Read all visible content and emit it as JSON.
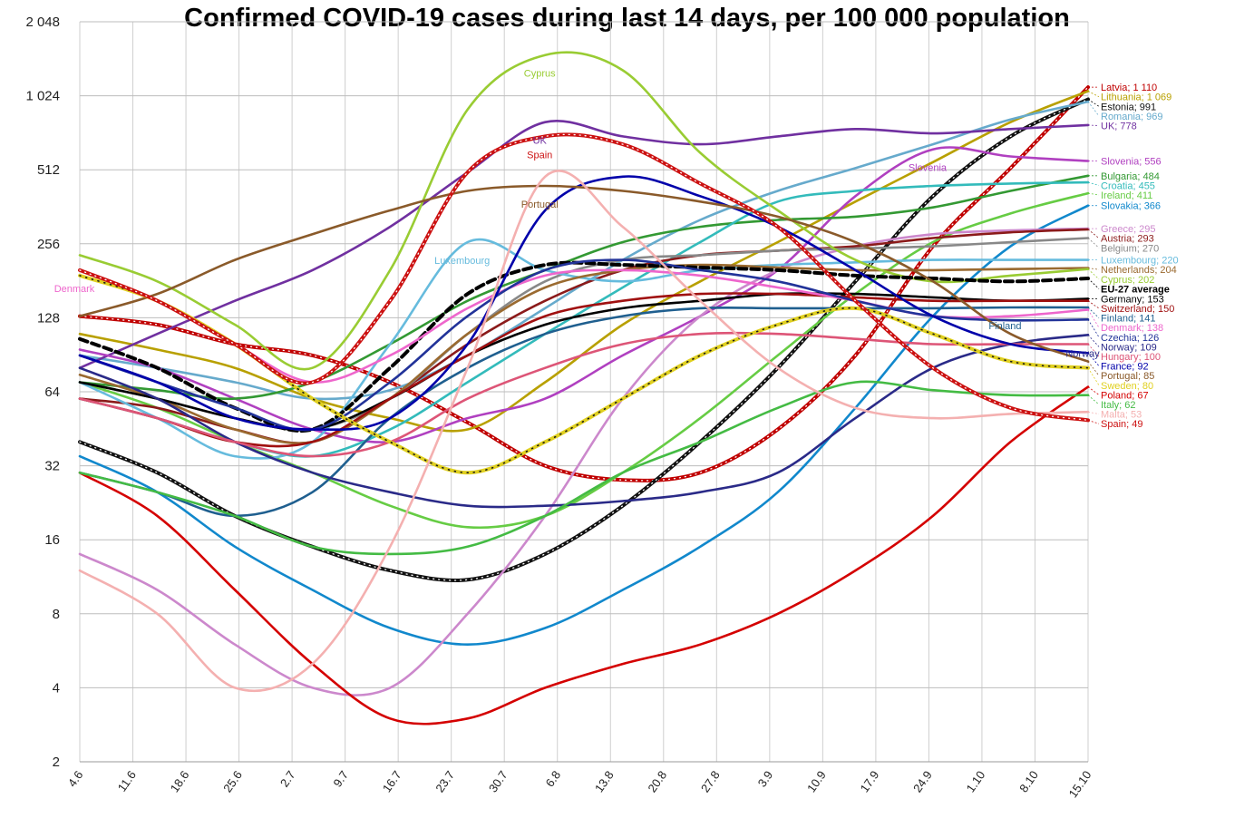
{
  "chart_data": {
    "type": "line",
    "title": "Confirmed COVID-19 cases during last 14 days, per 100 000 population",
    "yscale": "log2",
    "ylim": [
      2,
      2048
    ],
    "yticks": [
      "2",
      "4",
      "8",
      "16",
      "32",
      "64",
      "128",
      "256",
      "512",
      "1 024",
      "2 048"
    ],
    "yticks_values": [
      2,
      4,
      8,
      16,
      32,
      64,
      128,
      256,
      512,
      1024,
      2048
    ],
    "xticks": [
      "4.6",
      "11.6",
      "18.6",
      "25.6",
      "2.7",
      "9.7",
      "16.7",
      "23.7",
      "30.7",
      "6.8",
      "13.8",
      "20.8",
      "27.8",
      "3.9",
      "10.9",
      "17.9",
      "24.9",
      "1.10",
      "8.10",
      "15.10"
    ],
    "grid": true,
    "series": [
      {
        "name": "Latvia",
        "label": "Latvia; 1 110",
        "color": "#c00000",
        "values": [
          130,
          120,
          100,
          90,
          70,
          48,
          32,
          28,
          30,
          45,
          90,
          250,
          520,
          1110
        ]
      },
      {
        "name": "Lithuania",
        "label": "Lithuania; 1 069",
        "color": "#b8a000",
        "values": [
          110,
          95,
          80,
          60,
          50,
          45,
          70,
          120,
          180,
          260,
          380,
          550,
          800,
          1069
        ]
      },
      {
        "name": "Estonia",
        "label": "Estonia; 991",
        "color": "#111111",
        "values": [
          40,
          30,
          20,
          15,
          12,
          11,
          14,
          22,
          40,
          80,
          180,
          400,
          700,
          991
        ]
      },
      {
        "name": "Romania",
        "label": "Romania; 969",
        "color": "#66aacc",
        "values": [
          90,
          80,
          70,
          60,
          65,
          90,
          140,
          220,
          320,
          420,
          520,
          650,
          820,
          969
        ]
      },
      {
        "name": "UK",
        "label": "UK; 778",
        "color": "#7030a0",
        "values": [
          80,
          110,
          150,
          200,
          300,
          500,
          800,
          700,
          650,
          700,
          750,
          720,
          750,
          778
        ]
      },
      {
        "name": "Slovenia",
        "label": "Slovenia; 556",
        "color": "#b040c0",
        "values": [
          95,
          80,
          60,
          45,
          40,
          50,
          60,
          90,
          130,
          200,
          400,
          620,
          580,
          556
        ]
      },
      {
        "name": "Bulgaria",
        "label": "Bulgaria; 484",
        "color": "#339933",
        "values": [
          70,
          65,
          60,
          70,
          100,
          150,
          200,
          260,
          300,
          320,
          330,
          360,
          420,
          484
        ]
      },
      {
        "name": "Croatia",
        "label": "Croatia; 455",
        "color": "#33bbbb",
        "values": [
          60,
          50,
          40,
          35,
          45,
          70,
          110,
          170,
          260,
          380,
          420,
          440,
          450,
          455
        ]
      },
      {
        "name": "Ireland",
        "label": "Ireland; 411",
        "color": "#66cc44",
        "values": [
          70,
          55,
          40,
          30,
          22,
          18,
          20,
          30,
          50,
          90,
          160,
          260,
          340,
          411
        ]
      },
      {
        "name": "Slovakia",
        "label": "Slovakia; 366",
        "color": "#1188cc",
        "values": [
          35,
          25,
          15,
          10,
          7,
          6,
          7,
          10,
          15,
          25,
          55,
          130,
          250,
          366
        ]
      },
      {
        "name": "Greece",
        "label": "Greece; 295",
        "color": "#cc88cc",
        "values": [
          14,
          10,
          6,
          4,
          4,
          8,
          20,
          60,
          130,
          200,
          250,
          280,
          290,
          295
        ]
      },
      {
        "name": "Austria",
        "label": "Austria; 293",
        "color": "#8b1a1a",
        "values": [
          60,
          55,
          45,
          40,
          60,
          100,
          150,
          200,
          230,
          240,
          250,
          270,
          285,
          293
        ]
      },
      {
        "name": "Belgium",
        "label": "Belgium; 270",
        "color": "#888888",
        "values": [
          70,
          60,
          50,
          45,
          60,
          110,
          180,
          220,
          230,
          240,
          245,
          250,
          260,
          270
        ]
      },
      {
        "name": "Luxembourg",
        "label": "Luxembourg; 220",
        "color": "#66bbdd",
        "values": [
          70,
          50,
          35,
          40,
          100,
          260,
          200,
          180,
          200,
          210,
          215,
          220,
          220,
          220
        ]
      },
      {
        "name": "Netherlands",
        "label": "Netherlands; 204",
        "color": "#9a6a30",
        "values": [
          75,
          60,
          45,
          40,
          60,
          110,
          170,
          200,
          210,
          205,
          200,
          200,
          202,
          204
        ]
      },
      {
        "name": "Cyprus",
        "label": "Cyprus; 202",
        "color": "#99cc33",
        "values": [
          230,
          180,
          120,
          80,
          200,
          900,
          1500,
          1300,
          600,
          350,
          220,
          180,
          190,
          202
        ]
      },
      {
        "name": "EU-27 average",
        "label": "EU-27 average",
        "color": "#000000",
        "values": [
          105,
          80,
          55,
          45,
          80,
          160,
          210,
          210,
          205,
          200,
          190,
          185,
          180,
          185
        ]
      },
      {
        "name": "Germany",
        "label": "Germany; 153",
        "color": "#000000",
        "values": [
          70,
          60,
          50,
          45,
          60,
          90,
          120,
          140,
          150,
          160,
          160,
          155,
          150,
          153
        ]
      },
      {
        "name": "Switzerland",
        "label": "Switzerland; 150",
        "color": "#a01010",
        "values": [
          60,
          50,
          40,
          40,
          60,
          90,
          130,
          150,
          160,
          160,
          155,
          150,
          150,
          150
        ]
      },
      {
        "name": "Finland",
        "label": "Finland; 141",
        "color": "#1f5f8f",
        "values": [
          30,
          25,
          20,
          25,
          50,
          80,
          110,
          130,
          140,
          140,
          140,
          140,
          141,
          141
        ]
      },
      {
        "name": "Denmark",
        "label": "Denmark; 138",
        "color": "#ee66cc",
        "values": [
          200,
          150,
          100,
          70,
          90,
          140,
          190,
          200,
          190,
          170,
          150,
          130,
          130,
          138
        ]
      },
      {
        "name": "Czechia",
        "label": "Czechia; 126",
        "color": "#223399",
        "values": [
          90,
          70,
          55,
          45,
          70,
          130,
          200,
          220,
          200,
          180,
          150,
          130,
          125,
          126
        ]
      },
      {
        "name": "Norway",
        "label": "Norway; 109",
        "color": "#2a2a88",
        "values": [
          80,
          60,
          40,
          30,
          25,
          22,
          22,
          23,
          25,
          30,
          50,
          80,
          100,
          109
        ]
      },
      {
        "name": "Hungary",
        "label": "Hungary; 100",
        "color": "#dd5577",
        "values": [
          60,
          50,
          40,
          35,
          40,
          60,
          80,
          100,
          110,
          110,
          105,
          100,
          100,
          100
        ]
      },
      {
        "name": "France",
        "label": "France; 92",
        "color": "#0000aa",
        "values": [
          90,
          70,
          50,
          45,
          50,
          100,
          350,
          480,
          400,
          300,
          200,
          130,
          100,
          92
        ]
      },
      {
        "name": "Portugal",
        "label": "Portugal; 85",
        "color": "#8a5a2a",
        "values": [
          130,
          160,
          220,
          280,
          350,
          420,
          440,
          420,
          380,
          330,
          260,
          180,
          110,
          85
        ]
      },
      {
        "name": "Sweden",
        "label": "Sweden; 80",
        "color": "#e0d020",
        "values": [
          190,
          150,
          100,
          60,
          40,
          30,
          40,
          60,
          90,
          120,
          140,
          110,
          85,
          80
        ]
      },
      {
        "name": "Poland",
        "label": "Poland; 67",
        "color": "#d40000",
        "values": [
          30,
          20,
          10,
          5,
          3,
          3,
          4,
          5,
          6,
          8,
          12,
          20,
          40,
          67
        ]
      },
      {
        "name": "Italy",
        "label": "Italy; 62",
        "color": "#44bb44",
        "values": [
          30,
          25,
          20,
          15,
          14,
          15,
          20,
          30,
          40,
          55,
          70,
          65,
          62,
          62
        ]
      },
      {
        "name": "Malta",
        "label": "Malta; 53",
        "color": "#f4b0b0",
        "values": [
          12,
          8,
          4,
          5,
          15,
          80,
          480,
          300,
          150,
          80,
          55,
          50,
          52,
          53
        ]
      },
      {
        "name": "Spain",
        "label": "Spain; 49",
        "color": "#cc1111",
        "values": [
          200,
          150,
          100,
          70,
          150,
          500,
          700,
          650,
          450,
          300,
          150,
          80,
          55,
          49
        ]
      }
    ],
    "annotations": [
      "Cyprus",
      "Spain",
      "Portugal",
      "UK",
      "Denmark",
      "Slovenia",
      "Luxembourg",
      "Finland",
      "Norway"
    ]
  }
}
